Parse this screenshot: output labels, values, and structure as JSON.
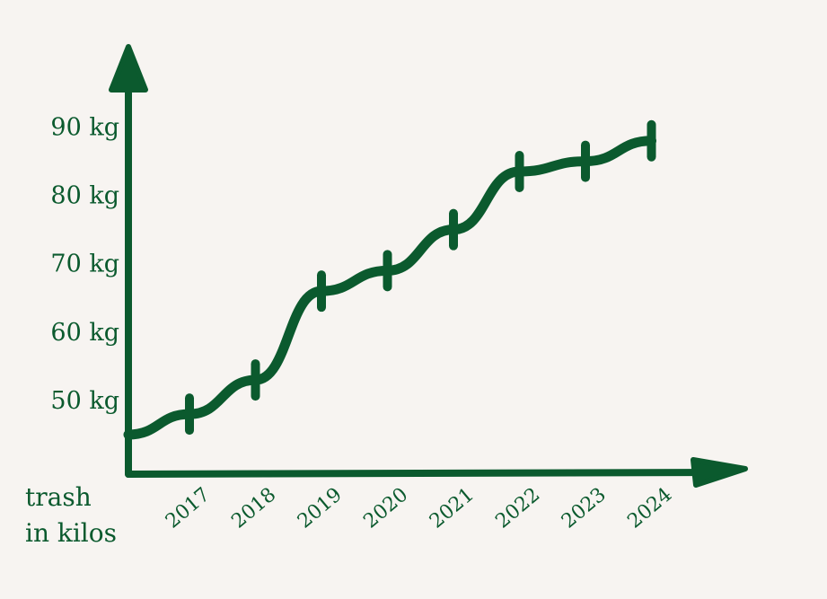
{
  "chart_data": {
    "type": "line",
    "style": "hand-drawn",
    "color": "#0b5a2e",
    "background": "#f7f4f1",
    "y_axis_title_lines": [
      "trash",
      "in kilos"
    ],
    "y_ticks": [
      {
        "value": 50,
        "label": "50 kg"
      },
      {
        "value": 60,
        "label": "60 kg"
      },
      {
        "value": 70,
        "label": "70 kg"
      },
      {
        "value": 80,
        "label": "80 kg"
      },
      {
        "value": 90,
        "label": "90 kg"
      }
    ],
    "x_labels": [
      "2017",
      "2018",
      "2019",
      "2020",
      "2021",
      "2022",
      "2023",
      "2024"
    ],
    "ylim": [
      40,
      104
    ],
    "start_value": 45,
    "series": [
      {
        "points": [
          {
            "x": "2017",
            "y": 48
          },
          {
            "x": "2018",
            "y": 53
          },
          {
            "x": "2019",
            "y": 66
          },
          {
            "x": "2020",
            "y": 69
          },
          {
            "x": "2021",
            "y": 75
          },
          {
            "x": "2022",
            "y": 83.5
          },
          {
            "x": "2023",
            "y": 85
          },
          {
            "x": "2024",
            "y": 88
          }
        ]
      }
    ],
    "grid": false,
    "legend": "none"
  }
}
